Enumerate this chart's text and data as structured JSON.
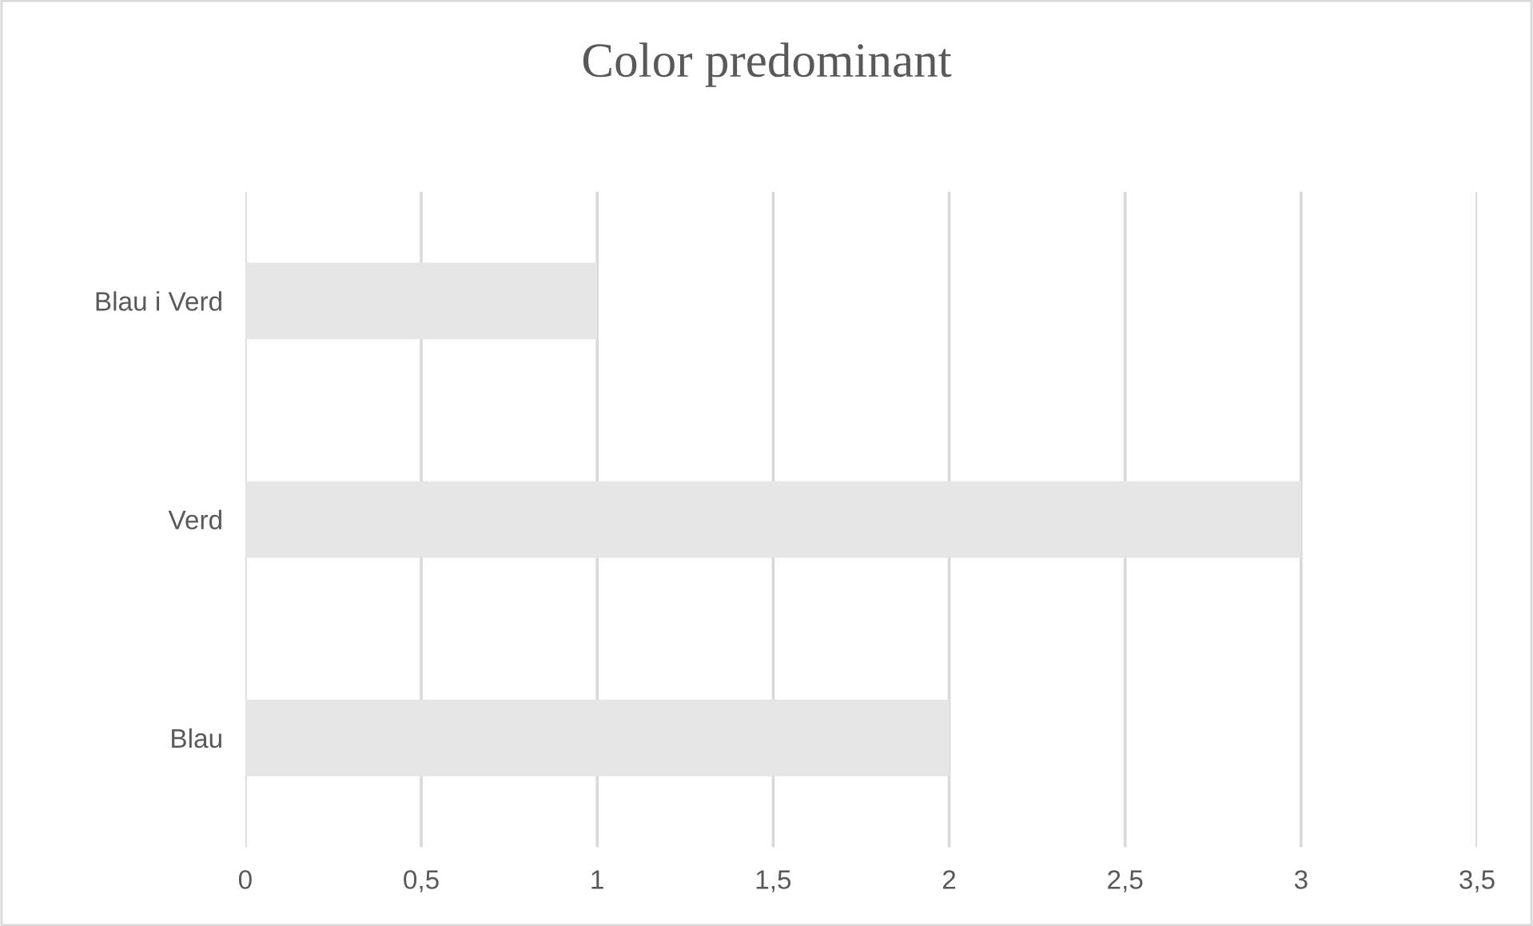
{
  "chart_data": {
    "type": "bar",
    "title": "Color predominant",
    "orientation": "horizontal",
    "categories": [
      "Blau i Verd",
      "Verd",
      "Blau"
    ],
    "values": [
      1,
      3,
      2
    ],
    "color": "#e7e6e6",
    "xlim": [
      0,
      3.5
    ],
    "xticks": [
      0,
      {
        "value": 0.5,
        "label": "0,5"
      },
      1,
      {
        "value": 1.5,
        "label": "1,5"
      },
      2,
      {
        "value": 2.5,
        "label": "2,5"
      },
      3,
      {
        "value": 3.5,
        "label": "3,5"
      }
    ],
    "grid": "x",
    "legend": false
  }
}
